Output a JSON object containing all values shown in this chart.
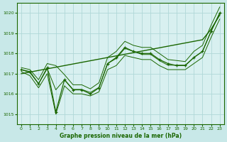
{
  "background_color": "#c8e8e8",
  "plot_bg_color": "#d8f0f0",
  "grid_color": "#b0d8d8",
  "line_color": "#1a6600",
  "xlabel": "Graphe pression niveau de la mer (hPa)",
  "xlim": [
    -0.5,
    23.5
  ],
  "ylim": [
    1014.5,
    1020.5
  ],
  "yticks": [
    1015,
    1016,
    1017,
    1018,
    1019,
    1020
  ],
  "xticks": [
    0,
    1,
    2,
    3,
    4,
    5,
    6,
    7,
    8,
    9,
    10,
    11,
    12,
    13,
    14,
    15,
    16,
    17,
    18,
    19,
    20,
    21,
    22,
    23
  ],
  "series": {
    "instant": [
      1017.2,
      1017.1,
      1016.5,
      1017.3,
      1015.1,
      1016.7,
      1016.2,
      1016.2,
      1016.0,
      1016.3,
      1017.5,
      1017.8,
      1018.3,
      1018.1,
      1018.0,
      1018.0,
      1017.7,
      1017.5,
      1017.4,
      1017.4,
      1017.8,
      1018.1,
      1019.1,
      1020.0
    ],
    "min": [
      1017.1,
      1016.9,
      1016.3,
      1017.0,
      1015.0,
      1016.4,
      1016.0,
      1016.0,
      1015.9,
      1016.1,
      1017.2,
      1017.4,
      1017.9,
      1017.8,
      1017.7,
      1017.7,
      1017.4,
      1017.2,
      1017.2,
      1017.2,
      1017.5,
      1017.8,
      1018.8,
      1019.7
    ],
    "max": [
      1017.3,
      1017.2,
      1016.7,
      1017.5,
      1017.4,
      1016.95,
      1016.45,
      1016.45,
      1016.25,
      1016.55,
      1017.8,
      1018.1,
      1018.6,
      1018.4,
      1018.3,
      1018.3,
      1018.0,
      1017.7,
      1017.65,
      1017.6,
      1018.1,
      1018.4,
      1019.4,
      1020.3
    ],
    "mean": [
      1017.2,
      1017.05,
      1016.5,
      1017.25,
      1016.2,
      1016.7,
      1016.22,
      1016.22,
      1016.07,
      1016.32,
      1017.5,
      1017.75,
      1018.25,
      1018.1,
      1017.95,
      1017.95,
      1017.65,
      1017.42,
      1017.42,
      1017.42,
      1017.8,
      1018.1,
      1019.1,
      1020.0
    ],
    "trend": [
      1017.0,
      1017.08,
      1017.16,
      1017.24,
      1017.32,
      1017.4,
      1017.48,
      1017.56,
      1017.64,
      1017.72,
      1017.8,
      1017.88,
      1017.96,
      1018.04,
      1018.12,
      1018.2,
      1018.28,
      1018.36,
      1018.44,
      1018.52,
      1018.6,
      1018.68,
      1019.2,
      1019.9
    ]
  }
}
